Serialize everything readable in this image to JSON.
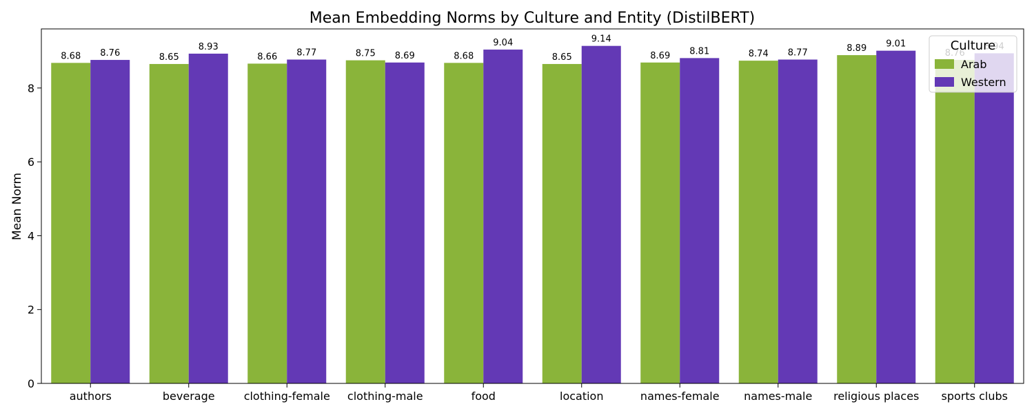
{
  "chart_data": {
    "type": "bar",
    "title": "Mean Embedding Norms by Culture and Entity (DistilBERT)",
    "xlabel": "",
    "ylabel": "Mean Norm",
    "ylim": [
      0,
      9.6
    ],
    "yticks": [
      0,
      2,
      4,
      6,
      8
    ],
    "grid": false,
    "legend_title": "Culture",
    "legend_position": "top-right",
    "categories": [
      "authors",
      "beverage",
      "clothing-female",
      "clothing-male",
      "food",
      "location",
      "names-female",
      "names-male",
      "religious places",
      "sports clubs"
    ],
    "series": [
      {
        "name": "Arab",
        "color": "#8ab43a",
        "values": [
          8.68,
          8.65,
          8.66,
          8.75,
          8.68,
          8.65,
          8.69,
          8.74,
          8.89,
          8.76
        ],
        "labels": [
          "8.68",
          "8.65",
          "8.66",
          "8.75",
          "8.68",
          "8.65",
          "8.69",
          "8.74",
          "8.89",
          "8.76"
        ]
      },
      {
        "name": "Western",
        "color": "#6339b5",
        "values": [
          8.76,
          8.93,
          8.77,
          8.69,
          9.04,
          9.14,
          8.81,
          8.77,
          9.01,
          8.94
        ],
        "labels": [
          "8.76",
          "8.93",
          "8.77",
          "8.69",
          "9.04",
          "9.14",
          "8.81",
          "8.77",
          "9.01",
          "8.94"
        ]
      }
    ]
  }
}
